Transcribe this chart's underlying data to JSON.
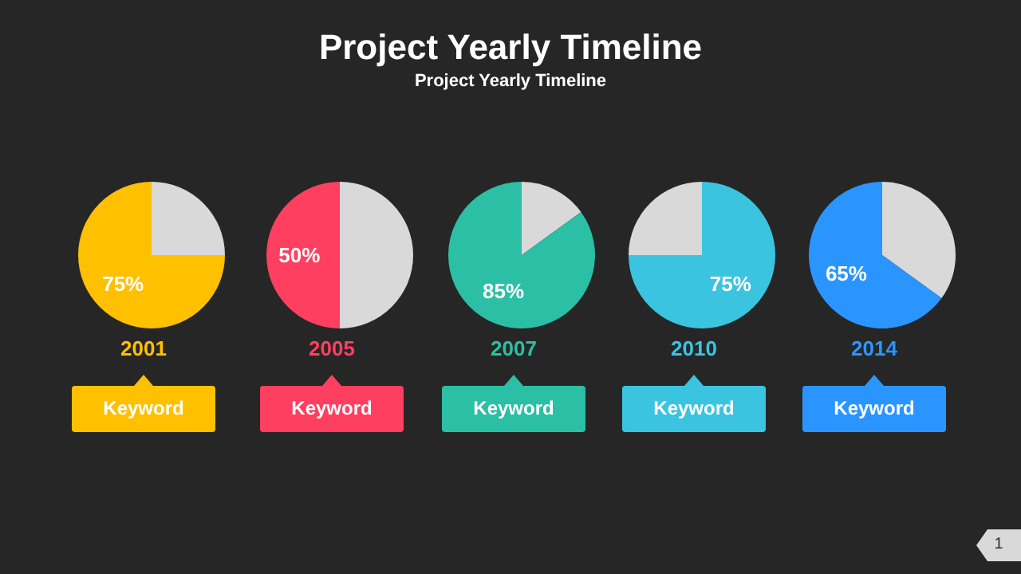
{
  "chart_data": [
    {
      "type": "pie",
      "categories": [
        null,
        null
      ],
      "values": [
        25,
        75
      ],
      "colors": [
        "#d9d9d9",
        "#ffc000"
      ],
      "value_labels": [
        null,
        "75%"
      ],
      "annotations": [
        "2001",
        "Keyword"
      ]
    },
    {
      "type": "pie",
      "categories": [
        null,
        null
      ],
      "values": [
        50,
        50
      ],
      "colors": [
        "#d9d9d9",
        "#ff3f5f"
      ],
      "value_labels": [
        null,
        "50%"
      ],
      "annotations": [
        "2005",
        "Keyword"
      ]
    },
    {
      "type": "pie",
      "title": "Project Yearly Timeline",
      "subtitle": "Project Yearly Timeline",
      "categories": [
        null,
        null
      ],
      "values": [
        15,
        85
      ],
      "colors": [
        "#d9d9d9",
        "#2bbfa5"
      ],
      "value_labels": [
        null,
        "85%"
      ],
      "annotations": [
        "2007",
        "Keyword"
      ]
    },
    {
      "type": "pie",
      "categories": [
        null,
        null
      ],
      "values": [
        75,
        25
      ],
      "colors": [
        "#3bc4e0",
        "#d9d9d9"
      ],
      "value_labels": [
        "75%",
        null
      ],
      "annotations": [
        "2010",
        "Keyword"
      ]
    },
    {
      "type": "pie",
      "categories": [
        null,
        null
      ],
      "values": [
        35,
        65
      ],
      "colors": [
        "#d9d9d9",
        "#2b95ff"
      ],
      "value_labels": [
        null,
        "65%"
      ],
      "annotations": [
        "2014",
        "Keyword",
        "1"
      ]
    }
  ]
}
